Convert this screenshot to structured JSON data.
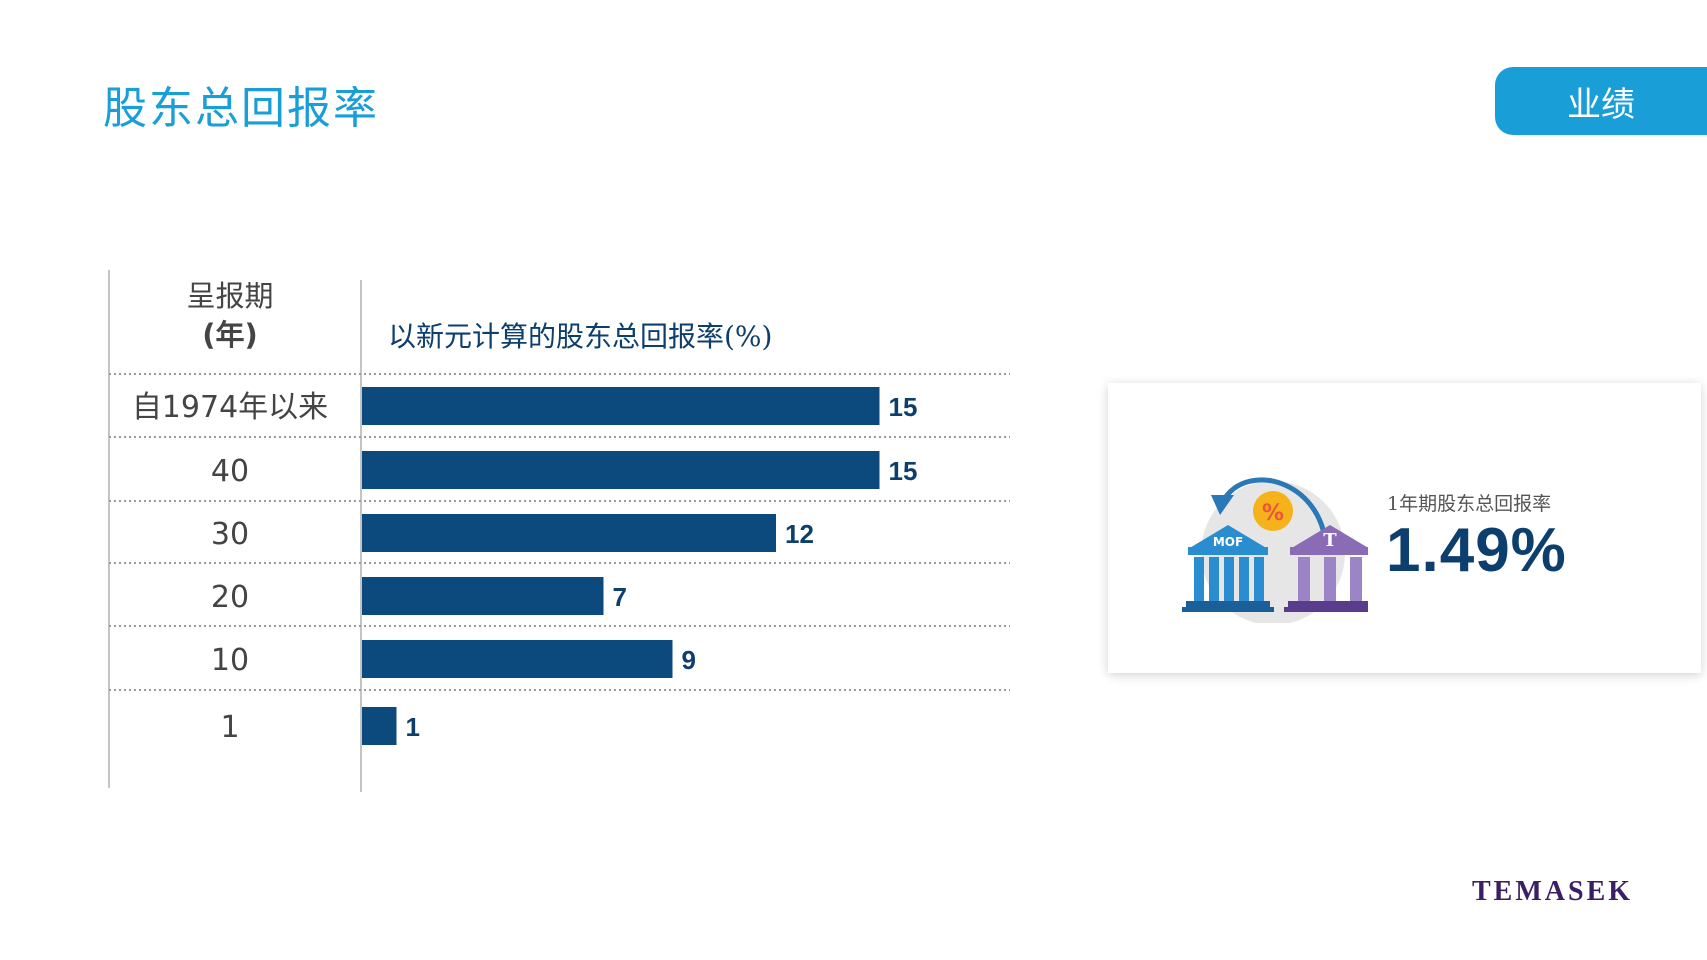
{
  "page": {
    "title": "股东总回报率",
    "tag": "业绩",
    "logo": "TEMASEK"
  },
  "chart_data": {
    "type": "bar",
    "orientation": "horizontal",
    "row_header": "呈报期",
    "row_header_unit": "(年)",
    "title": "以新元计算的股东总回报率(%)",
    "categories": [
      "自1974年以来",
      "40",
      "30",
      "20",
      "10",
      "1"
    ],
    "values": [
      15,
      15,
      12,
      7,
      9,
      1
    ],
    "xlim": [
      0,
      17
    ],
    "grid": "dotted row separators",
    "colors": {
      "bar": "#0c4a7e",
      "value_label": "#0c3e6e",
      "title": "#0c3e6e",
      "category": "#444444"
    }
  },
  "highlight": {
    "label": "1年期股东总回报率",
    "value": "1.49%",
    "illustration": {
      "left_building": "MOF",
      "right_building": "T",
      "coin": "%",
      "icons": [
        "circular-arrow-icon",
        "coin-percent-icon",
        "bank-building-icon"
      ]
    }
  }
}
